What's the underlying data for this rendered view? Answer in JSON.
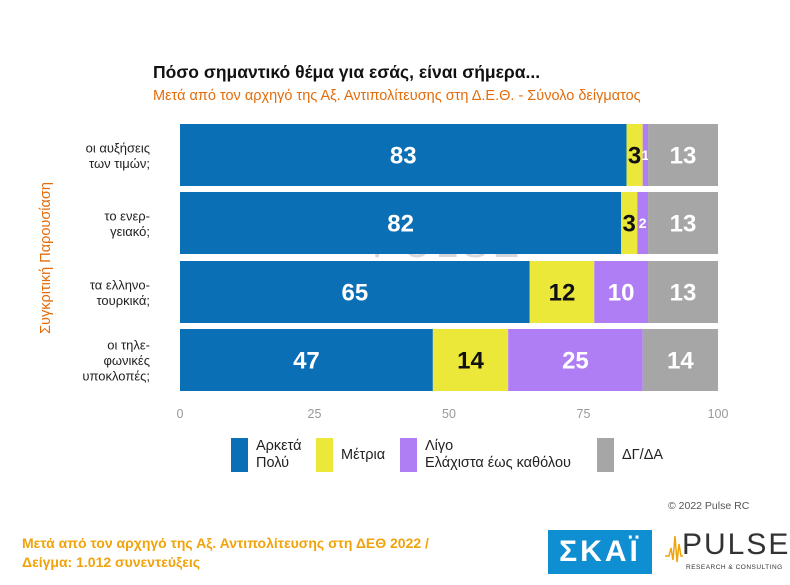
{
  "title": "Πόσο σημαντικό θέμα για εσάς, είναι σήμερα...",
  "subtitle": "Μετά από τον αρχηγό της Αξ. Αντιπολίτευσης στη Δ.Ε.Θ.  -  Σύνολο δείγματος",
  "side_label": "Συγκριτική  Παρουσίαση",
  "chart_data": {
    "type": "bar",
    "orientation": "horizontal",
    "stacked": true,
    "categories": [
      [
        "οι αυξήσεις",
        "των τιμών;"
      ],
      [
        "το ενερ-",
        "γειακό;"
      ],
      [
        "τα ελληνο-",
        "τουρκικά;"
      ],
      [
        "οι τηλε-",
        "φωνικές",
        "υποκλοπές;"
      ]
    ],
    "series": [
      {
        "name": "Αρκετά Πολύ",
        "color": "#0a6fb5",
        "label_color": "#ffffff",
        "values": [
          83,
          82,
          65,
          47
        ]
      },
      {
        "name": "Μέτρια",
        "color": "#ece83a",
        "label_color": "#111111",
        "values": [
          3,
          3,
          12,
          14
        ]
      },
      {
        "name": "Λίγο Ελάχιστα έως καθόλου",
        "color": "#b07ef4",
        "label_color": "#ffffff",
        "values": [
          1,
          2,
          10,
          25
        ]
      },
      {
        "name": "ΔΓ/ΔΑ",
        "color": "#a6a6a6",
        "label_color": "#ffffff",
        "values": [
          13,
          13,
          13,
          14
        ]
      }
    ],
    "xlim": [
      0,
      100
    ],
    "xticks": [
      "0",
      "25",
      "50",
      "75",
      "100"
    ],
    "legend_position": "bottom"
  },
  "legend": [
    {
      "lines": [
        "Αρκετά",
        "Πολύ"
      ],
      "color": "#0a6fb5"
    },
    {
      "lines": [
        "Μέτρια"
      ],
      "color": "#ece83a"
    },
    {
      "lines": [
        "Λίγο",
        "Ελάχιστα έως καθόλου"
      ],
      "color": "#b07ef4"
    },
    {
      "lines": [
        "ΔΓ/ΔΑ"
      ],
      "color": "#a6a6a6"
    }
  ],
  "copyright": "© 2022 Pulse RC",
  "footnote": {
    "line1": "Μετά από τον αρχηγό της Αξ. Αντιπολίτευσης στη ΔΕΘ  2022  /",
    "line2": "Δείγμα:  1.012 συνεντεύξεις"
  },
  "logos": {
    "skai": "ΣΚΑΪ",
    "pulse": "PULSE",
    "pulse_tagline": "RESEARCH & CONSULTING",
    "watermark": "PULSE"
  }
}
